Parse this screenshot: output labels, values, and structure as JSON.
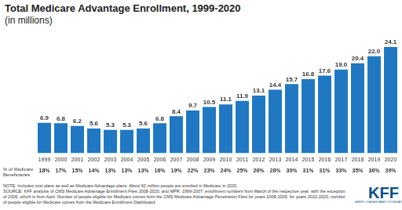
{
  "chart_data": {
    "type": "bar",
    "title": "Total Medicare Advantage Enrollment, 1999-2020",
    "subtitle": "(in millions)",
    "categories": [
      "1999",
      "2000",
      "2001",
      "2002",
      "2003",
      "2004",
      "2005",
      "2006",
      "2007",
      "2008",
      "2009",
      "2010",
      "2011",
      "2012",
      "2013",
      "2014",
      "2015",
      "2016",
      "2017",
      "2018",
      "2019",
      "2020"
    ],
    "values": [
      6.9,
      6.8,
      6.2,
      5.6,
      5.3,
      5.3,
      5.6,
      6.8,
      8.4,
      9.7,
      10.5,
      11.1,
      11.9,
      13.1,
      14.4,
      15.7,
      16.8,
      17.6,
      19.0,
      20.4,
      22.0,
      24.1
    ],
    "value_labels": [
      "6.9",
      "6.8",
      "6.2",
      "5.6",
      "5.3",
      "5.3",
      "5.6",
      "6.8",
      "8.4",
      "9.7",
      "10.5",
      "11.1",
      "11.9",
      "13.1",
      "14.4",
      "15.7",
      "16.8",
      "17.6",
      "19.0",
      "20.4",
      "22.0",
      "24.1"
    ],
    "color": "#1f78c1",
    "ylim": [
      0,
      25
    ],
    "grid": false,
    "data_labels": true,
    "tick_labels": "x",
    "beneficiary_share": {
      "label": "% of Medicare Beneficiaries",
      "values": [
        18,
        17,
        15,
        14,
        13,
        13,
        13,
        16,
        19,
        22,
        23,
        24,
        25,
        26,
        28,
        30,
        31,
        31,
        33,
        35,
        36,
        39
      ],
      "value_labels": [
        "18%",
        "17%",
        "15%",
        "14%",
        "13%",
        "13%",
        "13%",
        "16%",
        "19%",
        "22%",
        "23%",
        "24%",
        "25%",
        "26%",
        "28%",
        "30%",
        "31%",
        "31%",
        "33%",
        "35%",
        "36%",
        "39%"
      ]
    },
    "note": "NOTE: Includes cost plans as well as Medicare Advantage plans. About 62 million people are enrolled in Medicare in 2020.",
    "source": "SOURCE: KFF analysis of CMS Medicare Advantage Enrollment Files 2008-2020, and MPR, 1999-2007; enrollment numbers from March of the respective year, with the exception of 2006, which is from April. Number of people eligible for Medicare comes from the CMS Medicare Advantage Penetration Files for years 2008-2009; for years 2010-2020, number of people eligible for Medicare comes from the Medicare Enrollment Dashboard.",
    "logo": "KFF",
    "logo_subtext": "HENRY J KAISER FAMILY FOUNDATION"
  }
}
